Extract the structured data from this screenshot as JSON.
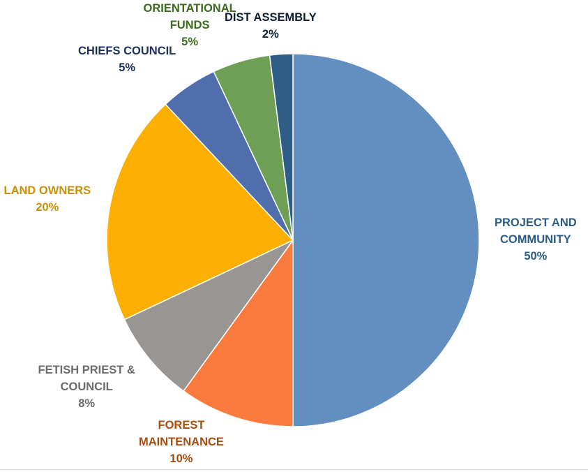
{
  "chart_data": {
    "type": "pie",
    "start": "12 o'clock",
    "direction": "clockwise",
    "slices": [
      {
        "label_lines": [
          "PROJECT AND",
          "COMMUNITY"
        ],
        "value": 50,
        "value_label": "50%",
        "color": "#628fbf",
        "label_color": "#2b5c86"
      },
      {
        "label_lines": [
          "FOREST",
          "MAINTENANCE"
        ],
        "value": 10,
        "value_label": "10%",
        "color": "#fb7b3e",
        "label_color": "#a64d0e"
      },
      {
        "label_lines": [
          "FETISH PRIEST &",
          "COUNCIL"
        ],
        "value": 8,
        "value_label": "8%",
        "color": "#999592",
        "label_color": "#6b6b6b"
      },
      {
        "label_lines": [
          "LAND OWNERS"
        ],
        "value": 20,
        "value_label": "20%",
        "color": "#fcaf00",
        "label_color": "#c8900a"
      },
      {
        "label_lines": [
          "CHIEFS COUNCIL"
        ],
        "value": 5,
        "value_label": "5%",
        "color": "#4f6eab",
        "label_color": "#1c2e5a"
      },
      {
        "label_lines": [
          "ORIENTATIONAL",
          "FUNDS"
        ],
        "value": 5,
        "value_label": "5%",
        "color": "#6f9f54",
        "label_color": "#3c6b1c"
      },
      {
        "label_lines": [
          "DIST ASSEMBLY"
        ],
        "value": 2,
        "value_label": "2%",
        "color": "#2e5e87",
        "label_color": "#0f1f33"
      }
    ]
  }
}
